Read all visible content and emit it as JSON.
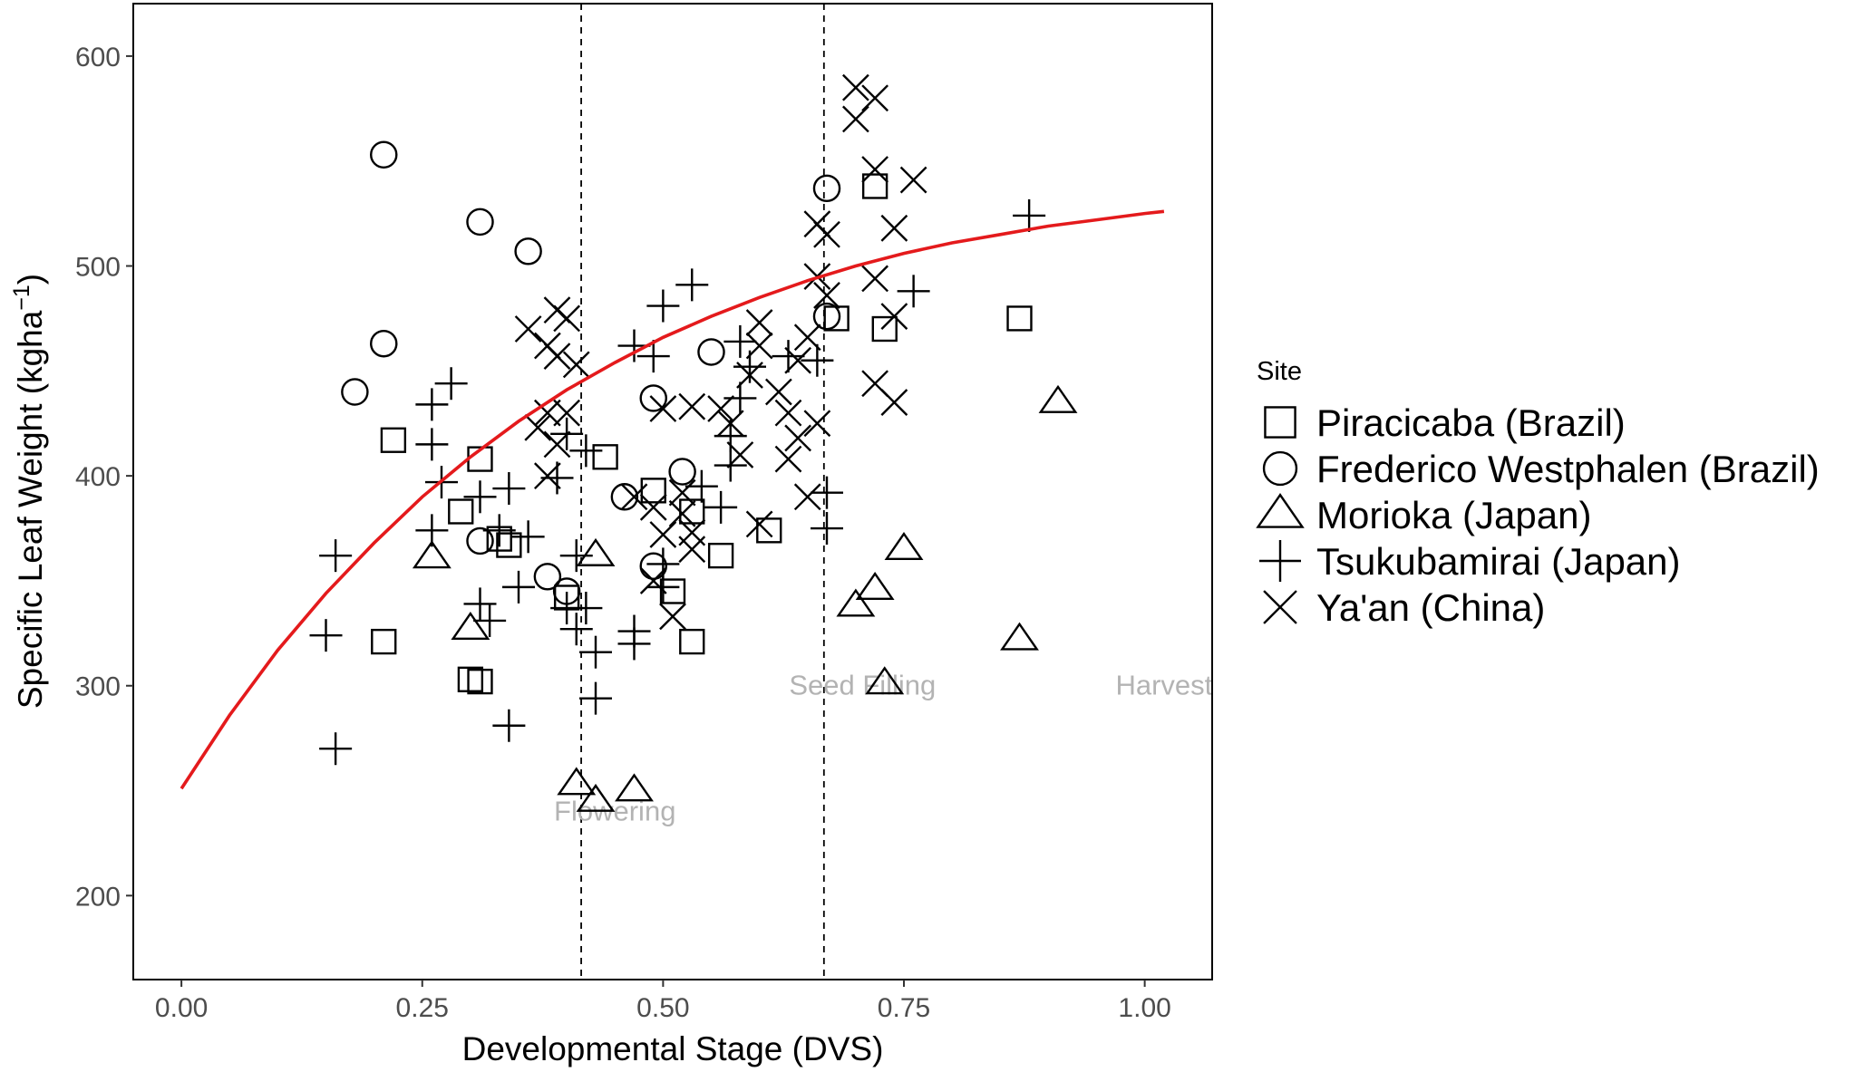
{
  "chart_data": {
    "type": "scatter",
    "xlabel": "Developmental Stage (DVS)",
    "ylabel": "Specific Leaf Weight (kgha",
    "ylabel_sup": "−1",
    "ylabel_close": ")",
    "xlim": [
      -0.05,
      1.07
    ],
    "ylim": [
      160,
      625
    ],
    "x_ticks": [
      0,
      0.25,
      0.5,
      0.75,
      1.0
    ],
    "x_tick_labels": [
      "0.00",
      "0.25",
      "0.50",
      "0.75",
      "1.00"
    ],
    "y_ticks": [
      200,
      300,
      400,
      500,
      600
    ],
    "y_tick_labels": [
      "200",
      "300",
      "400",
      "500",
      "600"
    ],
    "grid": false,
    "legend_title": "Site",
    "legend_position": "right",
    "stages": [
      {
        "label": "Flowering",
        "x": 0.415,
        "label_x": 0.45,
        "label_y": 240
      },
      {
        "label": "Seed Filling",
        "x": 0.667,
        "label_x": 0.707,
        "label_y": 300
      },
      {
        "label": "Harvest",
        "x": null,
        "label_x": 1.02,
        "label_y": 300
      }
    ],
    "fit_curve": {
      "color": "#e41a1c",
      "x": [
        0,
        0.05,
        0.1,
        0.15,
        0.2,
        0.25,
        0.3,
        0.35,
        0.4,
        0.45,
        0.5,
        0.55,
        0.6,
        0.65,
        0.7,
        0.75,
        0.8,
        0.85,
        0.9,
        0.95,
        1.0,
        1.02
      ],
      "y": [
        251,
        286,
        317,
        344,
        368,
        390,
        409,
        426,
        441,
        454,
        466,
        476,
        485,
        493,
        500,
        506,
        511,
        515,
        519,
        522,
        525,
        526
      ]
    },
    "series": [
      {
        "name": "Piracicaba (Brazil)",
        "marker": "square",
        "points": [
          [
            0.22,
            417
          ],
          [
            0.31,
            408
          ],
          [
            0.29,
            383
          ],
          [
            0.33,
            370
          ],
          [
            0.34,
            367
          ],
          [
            0.21,
            321
          ],
          [
            0.3,
            303
          ],
          [
            0.31,
            302
          ],
          [
            0.4,
            342
          ],
          [
            0.44,
            409
          ],
          [
            0.49,
            393
          ],
          [
            0.51,
            345
          ],
          [
            0.53,
            383
          ],
          [
            0.53,
            321
          ],
          [
            0.56,
            362
          ],
          [
            0.61,
            374
          ],
          [
            0.68,
            475
          ],
          [
            0.73,
            470
          ],
          [
            0.72,
            538
          ],
          [
            0.87,
            475
          ]
        ]
      },
      {
        "name": "Frederico Westphalen (Brazil)",
        "marker": "circle",
        "points": [
          [
            0.21,
            553
          ],
          [
            0.31,
            521
          ],
          [
            0.36,
            507
          ],
          [
            0.21,
            463
          ],
          [
            0.18,
            440
          ],
          [
            0.31,
            369
          ],
          [
            0.38,
            352
          ],
          [
            0.4,
            345
          ],
          [
            0.46,
            390
          ],
          [
            0.49,
            437
          ],
          [
            0.52,
            402
          ],
          [
            0.49,
            357
          ],
          [
            0.55,
            459
          ],
          [
            0.67,
            537
          ],
          [
            0.67,
            476
          ]
        ]
      },
      {
        "name": "Morioka (Japan)",
        "marker": "triangle",
        "points": [
          [
            0.26,
            361
          ],
          [
            0.3,
            327
          ],
          [
            0.41,
            253
          ],
          [
            0.43,
            245
          ],
          [
            0.47,
            250
          ],
          [
            0.43,
            362
          ],
          [
            0.7,
            338
          ],
          [
            0.72,
            346
          ],
          [
            0.73,
            301
          ],
          [
            0.75,
            365
          ],
          [
            0.87,
            322
          ],
          [
            0.91,
            435
          ]
        ]
      },
      {
        "name": "Tsukubamirai (Japan)",
        "marker": "plus",
        "points": [
          [
            0.16,
            362
          ],
          [
            0.15,
            324
          ],
          [
            0.16,
            270
          ],
          [
            0.26,
            374
          ],
          [
            0.27,
            397
          ],
          [
            0.26,
            415
          ],
          [
            0.26,
            434
          ],
          [
            0.28,
            444
          ],
          [
            0.31,
            390
          ],
          [
            0.31,
            339
          ],
          [
            0.32,
            331
          ],
          [
            0.34,
            394
          ],
          [
            0.33,
            374
          ],
          [
            0.36,
            371
          ],
          [
            0.35,
            347
          ],
          [
            0.34,
            281
          ],
          [
            0.39,
            399
          ],
          [
            0.4,
            420
          ],
          [
            0.4,
            337
          ],
          [
            0.42,
            412
          ],
          [
            0.41,
            362
          ],
          [
            0.42,
            337
          ],
          [
            0.41,
            327
          ],
          [
            0.43,
            316
          ],
          [
            0.43,
            294
          ],
          [
            0.47,
            462
          ],
          [
            0.49,
            457
          ],
          [
            0.5,
            481
          ],
          [
            0.53,
            491
          ],
          [
            0.47,
            326
          ],
          [
            0.47,
            320
          ],
          [
            0.5,
            358
          ],
          [
            0.5,
            347
          ],
          [
            0.54,
            395
          ],
          [
            0.56,
            385
          ],
          [
            0.57,
            419
          ],
          [
            0.57,
            405
          ],
          [
            0.58,
            437
          ],
          [
            0.59,
            452
          ],
          [
            0.58,
            464
          ],
          [
            0.63,
            457
          ],
          [
            0.66,
            455
          ],
          [
            0.67,
            392
          ],
          [
            0.67,
            375
          ],
          [
            0.76,
            488
          ],
          [
            0.88,
            524
          ]
        ]
      },
      {
        "name": "Ya'an (China)",
        "marker": "cross",
        "points": [
          [
            0.36,
            470
          ],
          [
            0.39,
            479
          ],
          [
            0.4,
            475
          ],
          [
            0.38,
            462
          ],
          [
            0.39,
            457
          ],
          [
            0.41,
            453
          ],
          [
            0.38,
            430
          ],
          [
            0.37,
            423
          ],
          [
            0.39,
            415
          ],
          [
            0.4,
            430
          ],
          [
            0.38,
            400
          ],
          [
            0.47,
            390
          ],
          [
            0.49,
            385
          ],
          [
            0.5,
            372
          ],
          [
            0.49,
            350
          ],
          [
            0.52,
            392
          ],
          [
            0.52,
            382
          ],
          [
            0.53,
            373
          ],
          [
            0.53,
            365
          ],
          [
            0.51,
            333
          ],
          [
            0.5,
            432
          ],
          [
            0.53,
            433
          ],
          [
            0.56,
            432
          ],
          [
            0.57,
            425
          ],
          [
            0.58,
            410
          ],
          [
            0.59,
            448
          ],
          [
            0.6,
            462
          ],
          [
            0.6,
            473
          ],
          [
            0.6,
            377
          ],
          [
            0.62,
            440
          ],
          [
            0.63,
            430
          ],
          [
            0.63,
            408
          ],
          [
            0.64,
            418
          ],
          [
            0.65,
            466
          ],
          [
            0.64,
            455
          ],
          [
            0.66,
            425
          ],
          [
            0.65,
            390
          ],
          [
            0.66,
            495
          ],
          [
            0.66,
            520
          ],
          [
            0.67,
            515
          ],
          [
            0.67,
            486
          ],
          [
            0.7,
            570
          ],
          [
            0.7,
            585
          ],
          [
            0.72,
            580
          ],
          [
            0.72,
            546
          ],
          [
            0.74,
            518
          ],
          [
            0.76,
            541
          ],
          [
            0.72,
            494
          ],
          [
            0.72,
            444
          ],
          [
            0.74,
            435
          ],
          [
            0.74,
            476
          ]
        ]
      }
    ]
  }
}
